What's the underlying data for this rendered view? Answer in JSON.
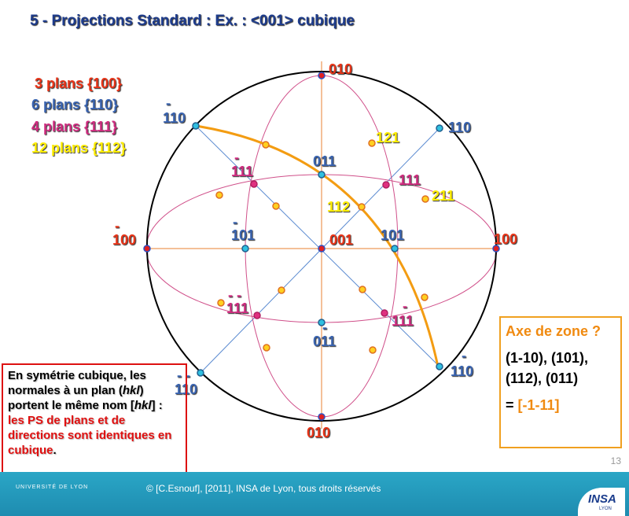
{
  "title": "5 - Projections Standard : Ex. :  <001> cubique",
  "legend": [
    "3 plans {100}",
    "6 plans {110}",
    "4 plans {111}",
    "12 plans {112}"
  ],
  "poles": [
    {
      "label": "010"
    },
    {
      "bar": "-",
      "label": "110"
    },
    {
      "label": "110"
    },
    {
      "label": "121"
    },
    {
      "label": "011"
    },
    {
      "bar": "-",
      "label": "111"
    },
    {
      "label": "111"
    },
    {
      "label": "211"
    },
    {
      "label": "112"
    },
    {
      "bar": "-",
      "label": "101"
    },
    {
      "label": "101"
    },
    {
      "bar": "-",
      "label": "100"
    },
    {
      "label": "100"
    },
    {
      "label": "001"
    },
    {
      "bar": "- -",
      "label": "111"
    },
    {
      "bar": "-",
      "label": "111"
    },
    {
      "bar": "-",
      "label": "011"
    },
    {
      "bar": "- -",
      "label": "110"
    },
    {
      "bar": "-",
      "label": "110"
    },
    {
      "label": "010"
    }
  ],
  "note": {
    "parts": [
      "En symétrie cubique, les normales à un plan (",
      "hkl",
      ") portent le même nom [",
      "hkl",
      "] : ",
      "les PS de plans et de directions sont identiques en cubique",
      "."
    ]
  },
  "zone_box": {
    "question": "Axe de zone ?",
    "planes": "(1-10), (101), (112), (011)",
    "equals": "=",
    "answer": "[-1-11]"
  },
  "page_number": "13",
  "footer": {
    "copyright": "© [C.Esnouf], [2011], INSA de Lyon, tous droits réservés",
    "university": "UNIVERSITÉ DE LYON",
    "insa": "INSA",
    "lyon": "LYON"
  }
}
